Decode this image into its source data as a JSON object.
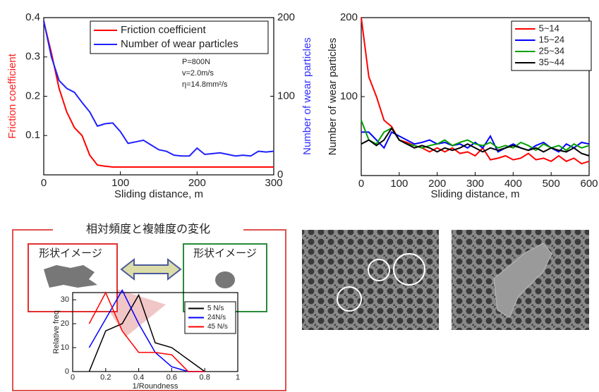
{
  "chart_data": [
    {
      "type": "line",
      "xlabel": "Sliding distance, m",
      "ylabel": "Friction coefficient",
      "ylabel_color": "#ff2020",
      "y2label": "Number of wear particles",
      "y2label_color": "#3030ff",
      "annotations": [
        "P=800N",
        "v=2.0m/s",
        "η=14.8mm²/s"
      ],
      "x": [
        0,
        10,
        20,
        30,
        40,
        50,
        60,
        70,
        80,
        90,
        100,
        110,
        120,
        130,
        140,
        150,
        160,
        170,
        180,
        190,
        200,
        210,
        220,
        230,
        240,
        250,
        260,
        270,
        280,
        290,
        300
      ],
      "xlim": [
        0,
        300
      ],
      "xticks": [
        0,
        100,
        200,
        300
      ],
      "ylim": [
        0,
        0.4
      ],
      "yticks": [
        0.1,
        0.2,
        0.3,
        0.4
      ],
      "y2lim": [
        0,
        200
      ],
      "y2ticks": [
        0,
        100,
        200
      ],
      "series": [
        {
          "name": "Friction coefficient",
          "color": "#ff0000",
          "values": [
            0.39,
            0.31,
            0.22,
            0.16,
            0.12,
            0.1,
            0.05,
            0.025,
            0.022,
            0.02,
            0.02,
            0.02,
            0.02,
            0.02,
            0.02,
            0.02,
            0.02,
            0.02,
            0.02,
            0.02,
            0.02,
            0.02,
            0.02,
            0.02,
            0.02,
            0.02,
            0.02,
            0.02,
            0.02,
            0.02,
            0.02
          ]
        },
        {
          "name": "Number of wear particles",
          "color": "#2020ff",
          "axis": "y2",
          "values": [
            196,
            150,
            120,
            110,
            105,
            92,
            80,
            62,
            65,
            66,
            55,
            40,
            42,
            44,
            38,
            32,
            30,
            25,
            24,
            24,
            34,
            26,
            27,
            28,
            26,
            24,
            25,
            24,
            30,
            29,
            30
          ]
        }
      ]
    },
    {
      "type": "line",
      "xlabel": "Sliding distance, m",
      "ylabel": "Number of wear particles",
      "x": [
        0,
        20,
        40,
        60,
        80,
        100,
        120,
        140,
        160,
        180,
        200,
        220,
        240,
        260,
        280,
        300,
        320,
        340,
        360,
        380,
        400,
        420,
        440,
        460,
        480,
        500,
        520,
        540,
        560,
        580,
        600
      ],
      "xlim": [
        0,
        600
      ],
      "xticks": [
        0,
        100,
        200,
        300,
        400,
        500,
        600
      ],
      "ylim": [
        0,
        200
      ],
      "yticks": [
        100,
        200
      ],
      "series": [
        {
          "name": "5~14",
          "color": "#ff0000",
          "values": [
            200,
            125,
            100,
            70,
            62,
            45,
            42,
            38,
            35,
            30,
            35,
            30,
            35,
            28,
            30,
            25,
            35,
            20,
            22,
            25,
            20,
            22,
            28,
            20,
            22,
            18,
            25,
            18,
            22,
            15,
            18
          ]
        },
        {
          "name": "15~24",
          "color": "#0000ff",
          "values": [
            55,
            55,
            45,
            35,
            55,
            50,
            45,
            40,
            42,
            45,
            40,
            42,
            38,
            40,
            35,
            42,
            35,
            50,
            30,
            35,
            40,
            35,
            32,
            38,
            42,
            35,
            30,
            40,
            35,
            42,
            40
          ]
        },
        {
          "name": "25~34",
          "color": "#00a000",
          "values": [
            70,
            45,
            40,
            55,
            60,
            45,
            40,
            38,
            35,
            38,
            40,
            45,
            38,
            42,
            45,
            40,
            38,
            42,
            35,
            38,
            35,
            42,
            38,
            32,
            40,
            35,
            38,
            32,
            40,
            35,
            38
          ]
        },
        {
          "name": "35~44",
          "color": "#000000",
          "values": [
            40,
            45,
            38,
            45,
            60,
            45,
            40,
            35,
            38,
            35,
            30,
            35,
            32,
            35,
            40,
            35,
            30,
            35,
            32,
            35,
            38,
            35,
            32,
            35,
            30,
            35,
            32,
            30,
            35,
            28,
            25
          ]
        }
      ]
    },
    {
      "type": "line",
      "xlabel": "1/Roundness",
      "ylabel": "Relative freq",
      "x": [
        0.1,
        0.2,
        0.3,
        0.4,
        0.5,
        0.6,
        0.7,
        0.8
      ],
      "xlim": [
        0,
        1
      ],
      "xticks": [
        0,
        0.2,
        0.4,
        0.6,
        0.8,
        1
      ],
      "ylim": [
        0,
        33
      ],
      "yticks": [
        0,
        10,
        20,
        30
      ],
      "series": [
        {
          "name": "5 N/s",
          "color": "#000000",
          "values": [
            0,
            17,
            20,
            32,
            12,
            10,
            5,
            0
          ]
        },
        {
          "name": "24N/s",
          "color": "#0000ff",
          "values": [
            10,
            22,
            34,
            20,
            8,
            2,
            0,
            0
          ]
        },
        {
          "name": "45 N/s",
          "color": "#ff0000",
          "values": [
            20,
            33,
            17,
            8,
            8,
            7,
            0,
            0
          ]
        }
      ]
    }
  ],
  "panel": {
    "title": "相対頻度と複雑度の変化",
    "left_label": "形状イメージ",
    "right_label": "形状イメージ"
  }
}
